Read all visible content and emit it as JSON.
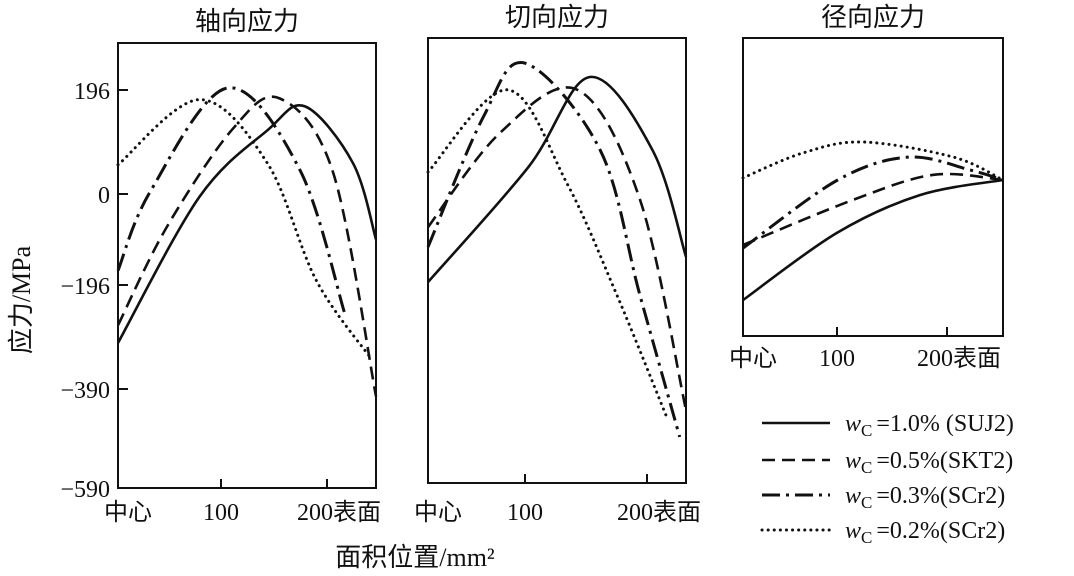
{
  "chart_data": [
    {
      "type": "line",
      "title": "轴向应力",
      "xlabel": "面积位置/mm²",
      "ylabel": "应力/MPa",
      "xlim": [
        0,
        247
      ],
      "y_ticks": [
        196,
        0,
        -196,
        -390,
        -590
      ],
      "y_tick_labels": [
        "196",
        "0",
        "−196",
        "−390",
        "−590"
      ],
      "x_tick_labels": [
        "中心",
        "100",
        "200表面"
      ],
      "series": [
        {
          "name": "wC=1.0% (SUJ2)",
          "style": "solid",
          "points": [
            [
              0,
              -304
            ],
            [
              78,
              -6
            ],
            [
              143,
              120
            ],
            [
              179,
              165
            ],
            [
              225,
              58
            ],
            [
              247,
              -98
            ]
          ]
        },
        {
          "name": "wC=0.5% (SKT2)",
          "style": "dashed",
          "points": [
            [
              0,
              -271
            ],
            [
              47,
              -70
            ],
            [
              110,
              123
            ],
            [
              155,
              180
            ],
            [
              206,
              40
            ],
            [
              247,
              -405
            ]
          ]
        },
        {
          "name": "wC=0.3% (SCr2)",
          "style": "dashdot",
          "points": [
            [
              0,
              -165
            ],
            [
              31,
              5
            ],
            [
              105,
              200
            ],
            [
              174,
              46
            ],
            [
              217,
              -249
            ]
          ]
        },
        {
          "name": "wC=0.2% (SCr2)",
          "style": "dotted",
          "points": [
            [
              0,
              55
            ],
            [
              78,
              178
            ],
            [
              143,
              58
            ],
            [
              190,
              -187
            ],
            [
              243,
              -335
            ]
          ]
        }
      ]
    },
    {
      "type": "line",
      "title": "切向应力",
      "xlim": [
        0,
        247
      ],
      "x_tick_labels": [
        "中心",
        "100",
        "200表面"
      ],
      "series": [
        {
          "name": "wC=1.0% (SUJ2)",
          "style": "solid",
          "points": [
            [
              0,
              -200
            ],
            [
              96,
              41
            ],
            [
              155,
              211
            ],
            [
              215,
              73
            ],
            [
              247,
              -146
            ]
          ]
        },
        {
          "name": "wC=0.5% (SKT2)",
          "style": "dashed",
          "points": [
            [
              0,
              -82
            ],
            [
              69,
              106
            ],
            [
              143,
              187
            ],
            [
              203,
              -23
            ],
            [
              247,
              -443
            ]
          ]
        },
        {
          "name": "wC=0.3% (SCr2)",
          "style": "dashdot",
          "points": [
            [
              0,
              -125
            ],
            [
              53,
              136
            ],
            [
              93,
              237
            ],
            [
              165,
              73
            ],
            [
              203,
              -225
            ],
            [
              241,
              -497
            ]
          ]
        },
        {
          "name": "wC=0.2% (SCr2)",
          "style": "dotted",
          "points": [
            [
              0,
              32
            ],
            [
              76,
              187
            ],
            [
              133,
              11
            ],
            [
              181,
              -225
            ],
            [
              229,
              -459
            ]
          ]
        }
      ]
    },
    {
      "type": "line",
      "title": "径向应力",
      "xlim": [
        0,
        247
      ],
      "ylim": [
        -300,
        273
      ],
      "x_tick_labels": [
        "中心",
        "100",
        "200表面"
      ],
      "series": [
        {
          "name": "wC=1.0% (SUJ2)",
          "style": "solid",
          "points": [
            [
              0,
              -231
            ],
            [
              89,
              -102
            ],
            [
              168,
              -29
            ],
            [
              247,
              0
            ]
          ]
        },
        {
          "name": "wC=0.5% (SKT2)",
          "style": "dashed",
          "points": [
            [
              0,
              -125
            ],
            [
              105,
              -38
            ],
            [
              181,
              10
            ],
            [
              247,
              0
            ]
          ]
        },
        {
          "name": "wC=0.3% (SCr2)",
          "style": "dashdot",
          "points": [
            [
              0,
              -131
            ],
            [
              90,
              0
            ],
            [
              157,
              44
            ],
            [
              216,
              19
            ],
            [
              247,
              0
            ]
          ]
        },
        {
          "name": "wC=0.2% (SCr2)",
          "style": "dotted",
          "points": [
            [
              0,
              4
            ],
            [
              57,
              52
            ],
            [
              114,
              73
            ],
            [
              200,
              44
            ],
            [
              247,
              0
            ]
          ]
        }
      ]
    }
  ],
  "legend": [
    {
      "style": "solid",
      "var": "w",
      "sub": "C",
      "text": "=1.0% (SUJ2)"
    },
    {
      "style": "dashed",
      "var": "w",
      "sub": "C",
      "text": "=0.5%(SKT2)"
    },
    {
      "style": "dashdot",
      "var": "w",
      "sub": "C",
      "text": "=0.3%(SCr2)"
    },
    {
      "style": "dotted",
      "var": "w",
      "sub": "C",
      "text": "=0.2%(SCr2)"
    }
  ],
  "legend_position": "bottom-right"
}
